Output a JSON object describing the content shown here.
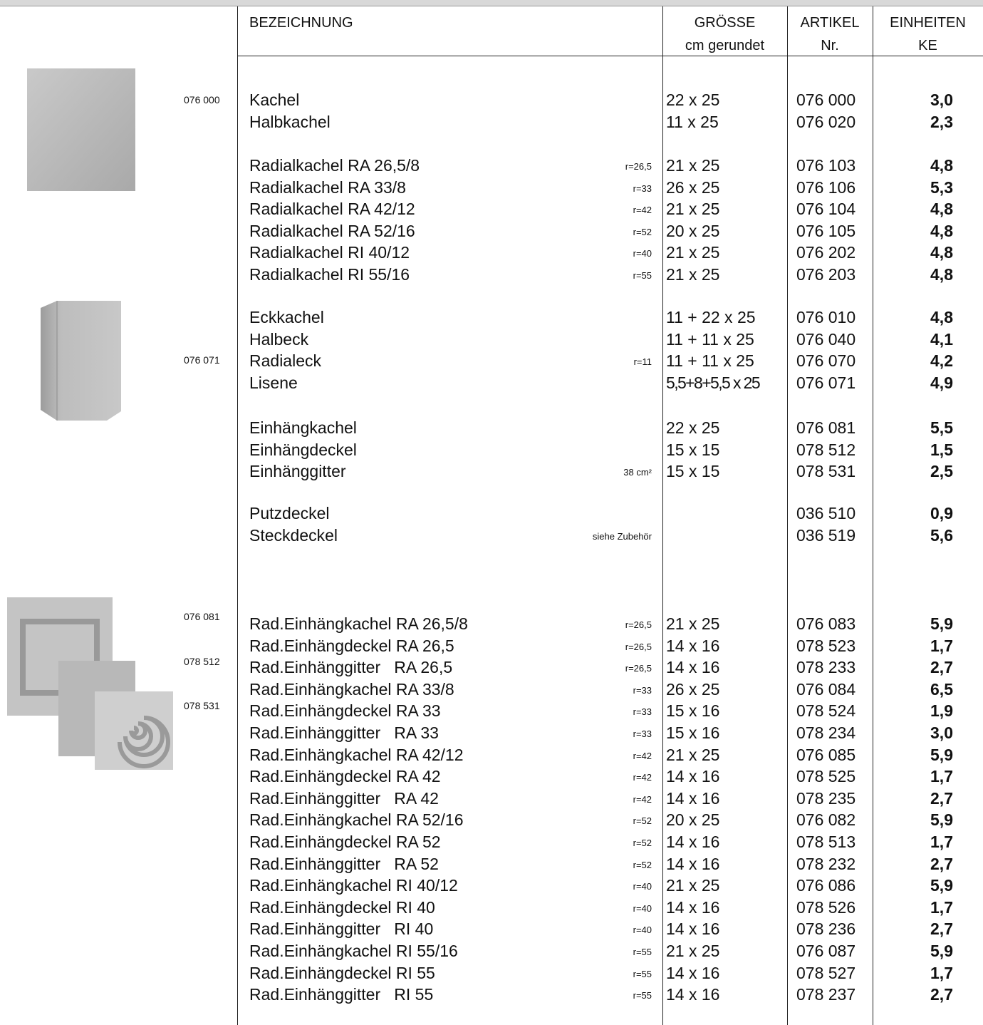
{
  "header": {
    "columns": [
      {
        "title": "BEZEICHNUNG"
      },
      {
        "title": "GRÖSSE",
        "subtitle": "cm gerundet"
      },
      {
        "title": "ARTIKEL",
        "subtitle": "Nr."
      },
      {
        "title": "EINHEITEN",
        "subtitle": "KE"
      }
    ]
  },
  "image_labels": [
    "076 000",
    "076 071",
    "076 081",
    "078 512",
    "078 531"
  ],
  "groups": [
    {
      "rows": [
        {
          "name": "Kachel",
          "size": "22 x 25",
          "article": "076 000",
          "ke": "3,0"
        },
        {
          "name": "Halbkachel",
          "size": "11 x 25",
          "article": "076 020",
          "ke": "2,3"
        }
      ]
    },
    {
      "rows": [
        {
          "name": "Radialkachel RA 26,5/8",
          "note": "r=26,5",
          "size": "21 x 25",
          "article": "076 103",
          "ke": "4,8"
        },
        {
          "name": "Radialkachel RA 33/8",
          "note": "r=33",
          "size": "26 x 25",
          "article": "076 106",
          "ke": "5,3"
        },
        {
          "name": "Radialkachel RA 42/12",
          "note": "r=42",
          "size": "21 x 25",
          "article": "076 104",
          "ke": "4,8"
        },
        {
          "name": "Radialkachel RA 52/16",
          "note": "r=52",
          "size": "20 x 25",
          "article": "076 105",
          "ke": "4,8"
        },
        {
          "name": "Radialkachel RI 40/12",
          "note": "r=40",
          "size": "21 x 25",
          "article": "076 202",
          "ke": "4,8"
        },
        {
          "name": "Radialkachel RI 55/16",
          "note": "r=55",
          "size": "21 x 25",
          "article": "076 203",
          "ke": "4,8"
        }
      ]
    },
    {
      "rows": [
        {
          "name": "Eckkachel",
          "size": "11 + 22 x 25",
          "article": "076 010",
          "ke": "4,8"
        },
        {
          "name": "Halbeck",
          "size": "11 + 11 x 25",
          "article": "076 040",
          "ke": "4,1"
        },
        {
          "name": "Radialeck",
          "note": "r=11",
          "size": "11 + 11 x 25",
          "article": "076 070",
          "ke": "4,2"
        },
        {
          "name": "Lisene",
          "size": "5,5+8+5,5 x 25",
          "article": "076 071",
          "ke": "4,9"
        }
      ]
    },
    {
      "rows": [
        {
          "name": "Einhängkachel",
          "size": "22 x 25",
          "article": "076 081",
          "ke": "5,5"
        },
        {
          "name": "Einhängdeckel",
          "size": "15 x 15",
          "article": "078 512",
          "ke": "1,5"
        },
        {
          "name": "Einhänggitter",
          "note": "38 cm²",
          "size": "15 x 15",
          "article": "078 531",
          "ke": "2,5"
        }
      ]
    },
    {
      "rows": [
        {
          "name": "Putzdeckel",
          "article": "036 510",
          "ke": "0,9"
        },
        {
          "name": "Steckdeckel",
          "note": "siehe Zubehör",
          "article": "036 519",
          "ke": "5,6"
        }
      ]
    },
    {
      "rows": [
        {
          "name": "Rad.Einhängkachel RA 26,5/8",
          "note": "r=26,5",
          "size": "21 x 25",
          "article": "076 083",
          "ke": "5,9"
        },
        {
          "name": "Rad.Einhängdeckel RA 26,5",
          "note": "r=26,5",
          "size": "14 x 16",
          "article": "078 523",
          "ke": "1,7"
        },
        {
          "name": "Rad.Einhänggitter   RA 26,5",
          "note": "r=26,5",
          "size": "14 x 16",
          "article": "078 233",
          "ke": "2,7"
        },
        {
          "name": "Rad.Einhängkachel RA 33/8",
          "note": "r=33",
          "size": "26 x 25",
          "article": "076 084",
          "ke": "6,5"
        },
        {
          "name": "Rad.Einhängdeckel RA 33",
          "note": "r=33",
          "size": "15 x 16",
          "article": "078 524",
          "ke": "1,9"
        },
        {
          "name": "Rad.Einhänggitter   RA 33",
          "note": "r=33",
          "size": "15 x 16",
          "article": "078 234",
          "ke": "3,0"
        },
        {
          "name": "Rad.Einhängkachel RA 42/12",
          "note": "r=42",
          "size": "21 x 25",
          "article": "076 085",
          "ke": "5,9"
        },
        {
          "name": "Rad.Einhängdeckel RA 42",
          "note": "r=42",
          "size": "14 x 16",
          "article": "078 525",
          "ke": "1,7"
        },
        {
          "name": "Rad.Einhänggitter   RA 42",
          "note": "r=42",
          "size": "14 x 16",
          "article": "078 235",
          "ke": "2,7"
        },
        {
          "name": "Rad.Einhängkachel RA 52/16",
          "note": "r=52",
          "size": "20 x 25",
          "article": "076 082",
          "ke": "5,9"
        },
        {
          "name": "Rad.Einhängdeckel RA 52",
          "note": "r=52",
          "size": "14 x 16",
          "article": "078 513",
          "ke": "1,7"
        },
        {
          "name": "Rad.Einhänggitter   RA 52",
          "note": "r=52",
          "size": "14 x 16",
          "article": "078 232",
          "ke": "2,7"
        },
        {
          "name": "Rad.Einhängkachel RI 40/12",
          "note": "r=40",
          "size": "21 x 25",
          "article": "076 086",
          "ke": "5,9"
        },
        {
          "name": "Rad.Einhängdeckel RI 40",
          "note": "r=40",
          "size": "14 x 16",
          "article": "078 526",
          "ke": "1,7"
        },
        {
          "name": "Rad.Einhänggitter   RI 40",
          "note": "r=40",
          "size": "14 x 16",
          "article": "078 236",
          "ke": "2,7"
        },
        {
          "name": "Rad.Einhängkachel RI 55/16",
          "note": "r=55",
          "size": "21 x 25",
          "article": "076 087",
          "ke": "5,9"
        },
        {
          "name": "Rad.Einhängdeckel RI 55",
          "note": "r=55",
          "size": "14 x 16",
          "article": "078 527",
          "ke": "1,7"
        },
        {
          "name": "Rad.Einhänggitter   RI 55",
          "note": "r=55",
          "size": "14 x 16",
          "article": "078 237",
          "ke": "2,7"
        }
      ]
    }
  ]
}
